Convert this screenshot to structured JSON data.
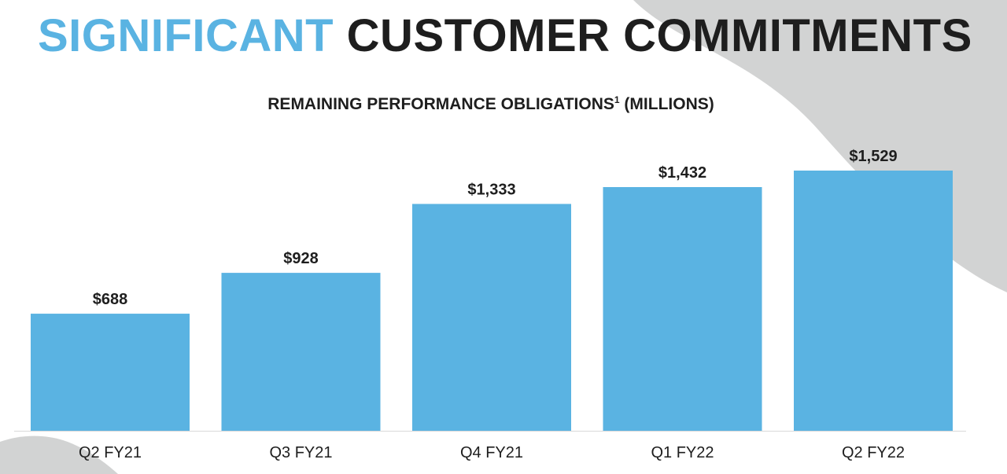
{
  "header": {
    "title_accent": "SIGNIFICANT",
    "title_main": "CUSTOMER COMMITMENTS",
    "subtitle": "REMAINING PERFORMANCE OBLIGATIONS",
    "subtitle_sup": "1",
    "subtitle_unit": "(MILLIONS)"
  },
  "colors": {
    "bar": "#5ab3e2",
    "accent_text": "#5ab3e2",
    "main_text": "#1e1e1e",
    "background_shape": "#d2d3d3"
  },
  "chart_data": {
    "type": "bar",
    "categories": [
      "Q2 FY21",
      "Q3 FY21",
      "Q4 FY21",
      "Q1 FY22",
      "Q2 FY22"
    ],
    "values": [
      688,
      928,
      1333,
      1432,
      1529
    ],
    "data_labels": [
      "$688",
      "$928",
      "$1,333",
      "$1,432",
      "$1,529"
    ],
    "title": "REMAINING PERFORMANCE OBLIGATIONS¹ (MILLIONS)",
    "xlabel": "",
    "ylabel": "",
    "ylim": [
      0,
      1529
    ],
    "grid": false,
    "legend": "none"
  }
}
